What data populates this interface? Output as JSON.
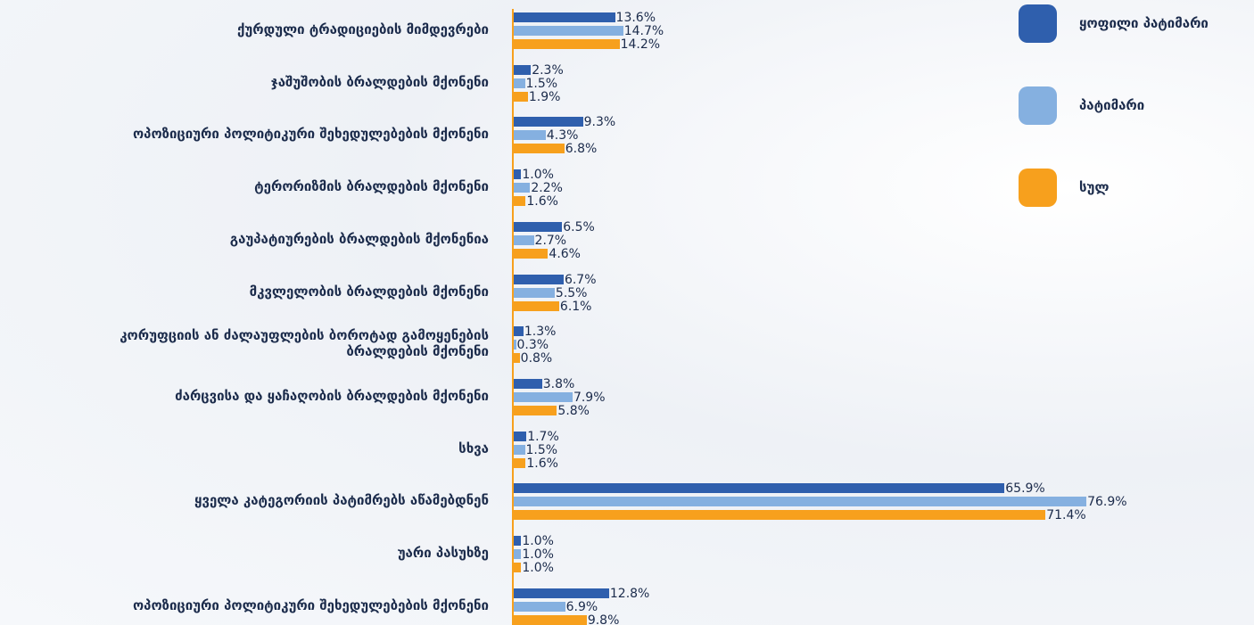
{
  "chart_data": {
    "type": "bar",
    "orientation": "horizontal",
    "categories": [
      "ქურდული ტრადიციების მიმდევრები",
      "ჯაშუშობის ბრალდების მქონენი",
      "ოპოზიციური პოლიტიკური შეხედულებების მქონენი",
      "ტერორიზმის ბრალდების მქონენი",
      "გაუპატიურების ბრალდების მქონენია",
      "მკვლელობის ბრალდების მქონენი",
      "კორუფციის ან ძალაუფლების ბოროტად გამოყენების\nბრალდების მქონენი",
      "ძარცვისა და ყაჩაღობის ბრალდების მქონენი",
      "სხვა",
      "ყველა კატეგორიის პატიმრებს აწამებდნენ",
      "უარი პასუხზე",
      "ოპოზიციური პოლიტიკური შეხედულებების მქონენი"
    ],
    "series": [
      {
        "name": "ყოფილი პატიმარი",
        "color": "#2f5fad",
        "values": [
          13.6,
          2.3,
          9.3,
          1.0,
          6.5,
          6.7,
          1.3,
          3.8,
          1.7,
          65.9,
          1.0,
          12.8
        ],
        "value_labels": [
          "13.6%",
          "2.3%",
          "9.3%",
          "1.0%",
          "6.5%",
          "6.7%",
          "1.3%",
          "3.8%",
          "1.7%",
          "65.9%",
          "1.0%",
          "12.8%"
        ]
      },
      {
        "name": "პატიმარი",
        "color": "#85b0e0",
        "values": [
          14.7,
          1.5,
          4.3,
          2.2,
          2.7,
          5.5,
          0.3,
          7.9,
          1.5,
          76.9,
          1.0,
          6.9
        ],
        "value_labels": [
          "14.7%",
          "1.5%",
          "4.3%",
          "2.2%",
          "2.7%",
          "5.5%",
          "0.3%",
          "7.9%",
          "1.5%",
          "76.9%",
          "1.0%",
          "6.9%"
        ]
      },
      {
        "name": "სულ",
        "color": "#f7a01d",
        "values": [
          14.2,
          1.9,
          6.8,
          1.6,
          4.6,
          6.1,
          0.8,
          5.8,
          1.6,
          71.4,
          1.0,
          9.8
        ],
        "value_labels": [
          "14.2%",
          "1.9%",
          "6.8%",
          "1.6%",
          "4.6%",
          "6.1%",
          "0.8%",
          "5.8%",
          "1.6%",
          "71.4%",
          "1.0%",
          "9.8%"
        ]
      }
    ],
    "legend": "top-right"
  }
}
